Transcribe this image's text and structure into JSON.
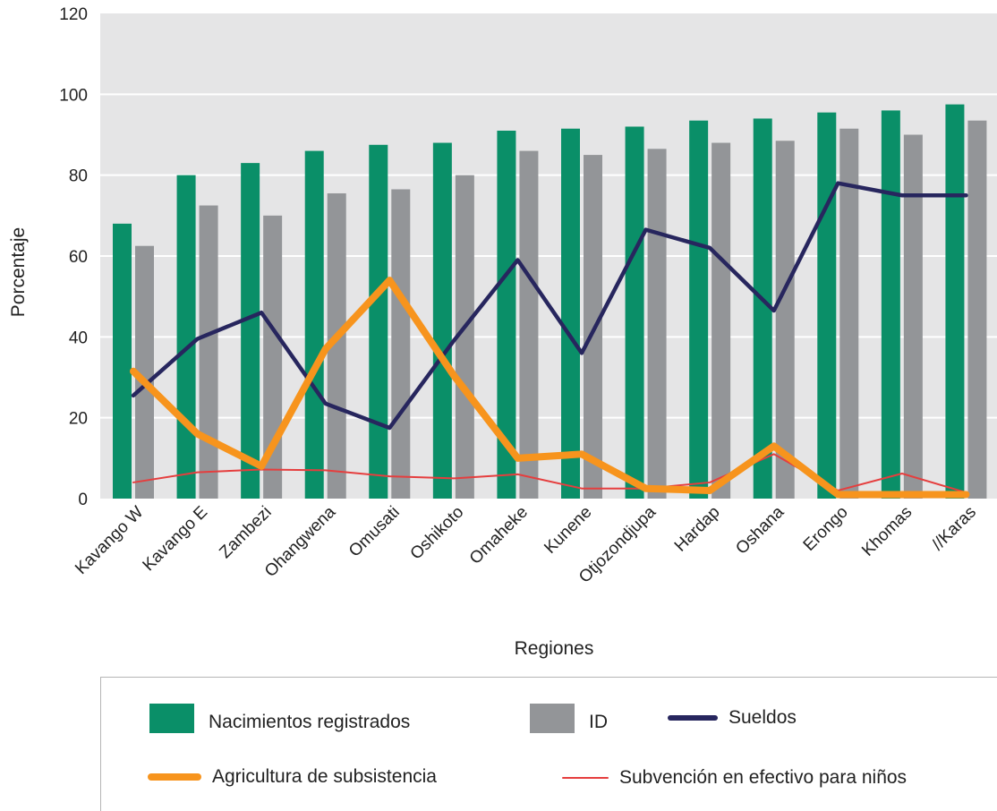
{
  "chart_data": {
    "type": "bar",
    "xlabel": "Regiones",
    "ylabel": "Porcentaje",
    "ylim": [
      0,
      120
    ],
    "yticks": [
      "0",
      "20",
      "40",
      "60",
      "80",
      "100",
      "120"
    ],
    "categories": [
      "Kavango W",
      "Kavango E",
      "Zambezi",
      "Ohangwena",
      "Omusati",
      "Oshikoto",
      "Omaheke",
      "Kunene",
      "Otjozondjupa",
      "Hardap",
      "Oshana",
      "Erongo",
      "Khomas",
      "//Karas"
    ],
    "bar_series": [
      {
        "name": "Nacimientos registrados",
        "color": "#0a8f68",
        "values": [
          68,
          80,
          83,
          86,
          87.5,
          88,
          91,
          91.5,
          92,
          93.5,
          94,
          95.5,
          96,
          97.5
        ]
      },
      {
        "name": "ID",
        "color": "#939598",
        "values": [
          62.5,
          72.5,
          70,
          75.5,
          76.5,
          80,
          86,
          85,
          86.5,
          88,
          88.5,
          91.5,
          90,
          93.5
        ]
      }
    ],
    "line_series": [
      {
        "name": "Sueldos",
        "color": "#27265e",
        "values": [
          25.5,
          39.5,
          46,
          23.5,
          17.5,
          39,
          59,
          36,
          66.5,
          62,
          46.5,
          78,
          75,
          75
        ]
      },
      {
        "name": "Agricultura de subsistencia",
        "color": "#f7941d",
        "values": [
          31.5,
          16,
          8,
          37,
          54,
          30.5,
          10,
          11,
          2.5,
          2,
          13,
          1,
          1,
          1
        ]
      },
      {
        "name": "Subvención en efectivo para niños",
        "color": "#e53e3e",
        "values": [
          4,
          6.5,
          7.2,
          7,
          5.5,
          5,
          6,
          2.5,
          2.5,
          4,
          11,
          2,
          6.2,
          1.5
        ]
      }
    ],
    "legend_position": "bottom",
    "background": "#e5e5e6",
    "grid": "horizontal"
  }
}
